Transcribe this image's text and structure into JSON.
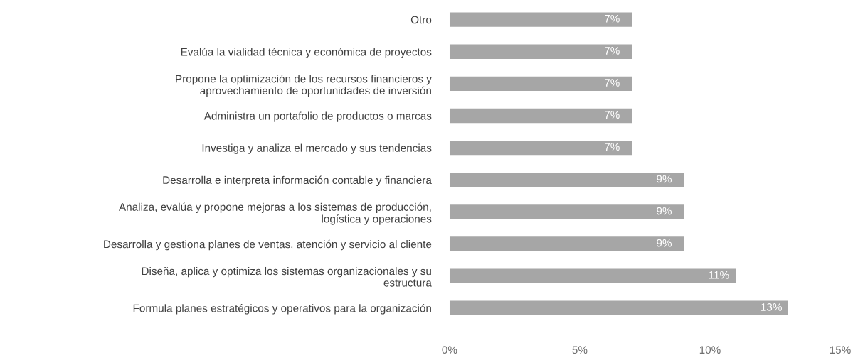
{
  "chart_data": {
    "type": "bar",
    "orientation": "horizontal",
    "categories": [
      "Otro",
      "Evalúa la vialidad técnica y económica de proyectos",
      "Propone la optimización de los recursos financieros y\naprovechamiento de oportunidades de inversión",
      "Administra un portafolio de productos o marcas",
      "Investiga y analiza el mercado y sus tendencias",
      "Desarrolla e interpreta información contable y financiera",
      "Analiza, evalúa y propone mejoras a los sistemas de producción,\nlogística y operaciones",
      "Desarrolla y gestiona planes de ventas, atención y servicio al cliente",
      "Diseña, aplica y optimiza los sistemas organizacionales y su\nestructura",
      "Formula planes estratégicos y operativos para la organización"
    ],
    "values": [
      7,
      7,
      7,
      7,
      7,
      9,
      9,
      9,
      11,
      13
    ],
    "value_labels": [
      "7%",
      "7%",
      "7%",
      "7%",
      "7%",
      "9%",
      "9%",
      "9%",
      "11%",
      "13%"
    ],
    "color": "#a6a6a6",
    "xlim": [
      0,
      15
    ],
    "xticks": [
      {
        "value": 0,
        "label": "0%"
      },
      {
        "value": 5,
        "label": "5%"
      },
      {
        "value": 10,
        "label": "10%"
      },
      {
        "value": 15,
        "label": "15%"
      }
    ],
    "grid": false,
    "legend": false
  }
}
